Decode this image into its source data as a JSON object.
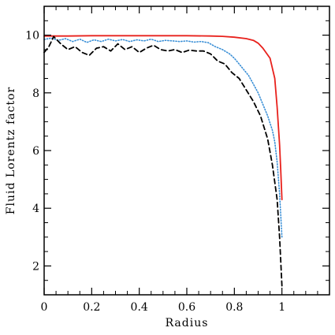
{
  "chart_data": {
    "type": "line",
    "title": "",
    "xlabel": "Radius",
    "ylabel": "Fluid Lorentz factor",
    "xlim": [
      0,
      1.2
    ],
    "ylim": [
      1,
      11
    ],
    "xticks": [
      0,
      0.2,
      0.4,
      0.6,
      0.8,
      1
    ],
    "xtick_labels": [
      "0",
      "0.2",
      "0.4",
      "0.6",
      "0.8",
      "1"
    ],
    "yticks": [
      2,
      4,
      6,
      8,
      10
    ],
    "ytick_labels": [
      "2",
      "4",
      "6",
      "8",
      "10"
    ],
    "grid": false,
    "legend": "none",
    "series": [
      {
        "color": "#e8211c",
        "style": "solid",
        "x": [
          0.0,
          0.02,
          0.05,
          0.1,
          0.2,
          0.3,
          0.4,
          0.5,
          0.6,
          0.7,
          0.75,
          0.8,
          0.85,
          0.88,
          0.9,
          0.92,
          0.95,
          0.97,
          0.98,
          0.99,
          0.995,
          1.0
        ],
        "y": [
          9.97,
          9.97,
          9.97,
          9.97,
          9.98,
          9.98,
          9.98,
          9.98,
          9.98,
          9.97,
          9.96,
          9.93,
          9.88,
          9.82,
          9.72,
          9.55,
          9.2,
          8.5,
          7.5,
          6.2,
          5.3,
          4.3
        ]
      },
      {
        "color": "#3a8fd6",
        "style": "dotted",
        "x": [
          0.0,
          0.03,
          0.06,
          0.09,
          0.12,
          0.15,
          0.18,
          0.21,
          0.24,
          0.27,
          0.3,
          0.33,
          0.36,
          0.39,
          0.42,
          0.45,
          0.48,
          0.51,
          0.54,
          0.57,
          0.6,
          0.63,
          0.66,
          0.69,
          0.72,
          0.75,
          0.78,
          0.8,
          0.82,
          0.84,
          0.86,
          0.88,
          0.9,
          0.92,
          0.94,
          0.96,
          0.97,
          0.98,
          0.99,
          1.0
        ],
        "y": [
          9.85,
          9.9,
          9.82,
          9.88,
          9.78,
          9.86,
          9.75,
          9.84,
          9.78,
          9.86,
          9.8,
          9.85,
          9.78,
          9.84,
          9.8,
          9.86,
          9.78,
          9.82,
          9.8,
          9.78,
          9.8,
          9.76,
          9.78,
          9.74,
          9.6,
          9.5,
          9.35,
          9.2,
          9.0,
          8.8,
          8.6,
          8.3,
          8.0,
          7.6,
          7.2,
          6.7,
          6.3,
          5.6,
          4.5,
          3.0
        ]
      },
      {
        "color": "#000000",
        "style": "dashed",
        "x": [
          0.0,
          0.02,
          0.04,
          0.07,
          0.1,
          0.13,
          0.16,
          0.19,
          0.22,
          0.25,
          0.28,
          0.31,
          0.34,
          0.37,
          0.4,
          0.43,
          0.46,
          0.49,
          0.52,
          0.55,
          0.58,
          0.61,
          0.64,
          0.67,
          0.7,
          0.73,
          0.76,
          0.79,
          0.82,
          0.85,
          0.88,
          0.91,
          0.94,
          0.96,
          0.98,
          0.99,
          1.0
        ],
        "y": [
          9.4,
          9.6,
          9.95,
          9.7,
          9.5,
          9.6,
          9.4,
          9.3,
          9.55,
          9.6,
          9.45,
          9.7,
          9.5,
          9.6,
          9.4,
          9.55,
          9.65,
          9.5,
          9.45,
          9.5,
          9.4,
          9.48,
          9.45,
          9.45,
          9.35,
          9.1,
          9.0,
          8.7,
          8.5,
          8.1,
          7.7,
          7.2,
          6.4,
          5.5,
          4.3,
          3.0,
          1.3
        ]
      }
    ]
  }
}
